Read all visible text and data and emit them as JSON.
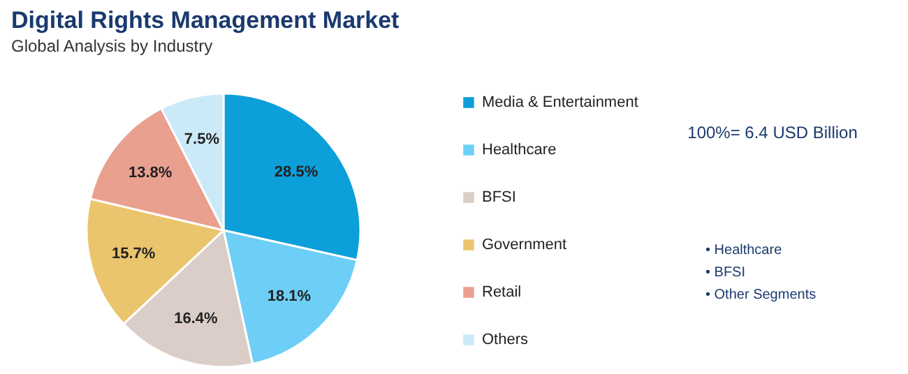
{
  "chart_data": {
    "type": "pie",
    "title": "Digital Rights Management Market",
    "subtitle": "Global Analysis by Industry",
    "categories": [
      "Media & Entertainment",
      "Healthcare",
      "BFSI",
      "Government",
      "Retail",
      "Others"
    ],
    "values": [
      28.5,
      18.1,
      16.4,
      15.7,
      13.8,
      7.5
    ],
    "value_labels": [
      "28.5%",
      "18.1%",
      "16.4%",
      "15.7%",
      "13.8%",
      "7.5%"
    ],
    "colors": [
      "#0c9fd9",
      "#6dcff6",
      "#dbcdc8",
      "#ebc56d",
      "#e9a08f",
      "#cce9f7"
    ],
    "legend": "right",
    "annotations": [
      "100%= 6.4 USD Billion",
      "• Healthcare",
      "• BFSI",
      "• Other Segments"
    ]
  }
}
